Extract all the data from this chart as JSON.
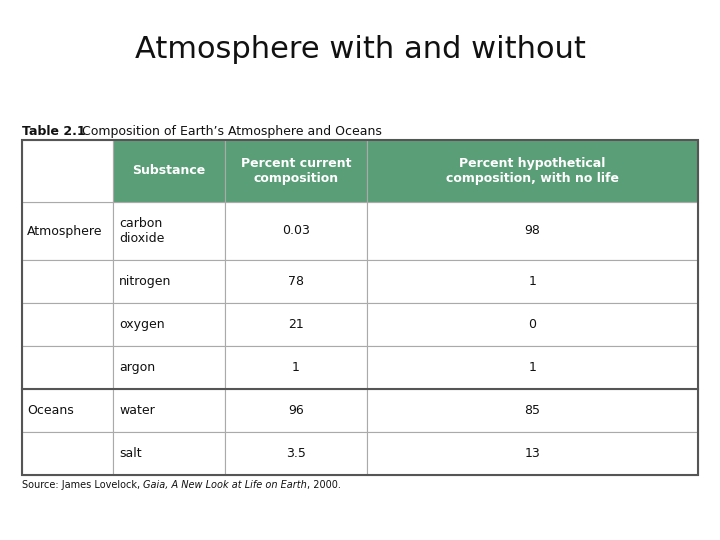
{
  "title": "Atmosphere with and without",
  "table_label_bold": "Table 2.1",
  "table_label_rest": "  Composition of Earth’s Atmosphere and Oceans",
  "source_normal1": "Source: James Lovelock, ",
  "source_italic": "Gaia, A New Look at Life on Earth",
  "source_normal2": ", 2000.",
  "header_color": "#5a9e78",
  "header_text_color": "#ffffff",
  "border_color": "#aaaaaa",
  "bg_color": "#ffffff",
  "headers": [
    "",
    "Substance",
    "Percent current\ncomposition",
    "Percent hypothetical\ncomposition, with no life"
  ],
  "rows": [
    [
      "Atmosphere",
      "carbon\ndioxide",
      "0.03",
      "98"
    ],
    [
      "",
      "nitrogen",
      "78",
      "1"
    ],
    [
      "",
      "oxygen",
      "21",
      "0"
    ],
    [
      "",
      "argon",
      "1",
      "1"
    ],
    [
      "Oceans",
      "water",
      "96",
      "85"
    ],
    [
      "",
      "salt",
      "3.5",
      "13"
    ]
  ],
  "title_fontsize": 22,
  "header_fontsize": 9,
  "cell_fontsize": 9,
  "label_fontsize": 9,
  "source_fontsize": 7
}
